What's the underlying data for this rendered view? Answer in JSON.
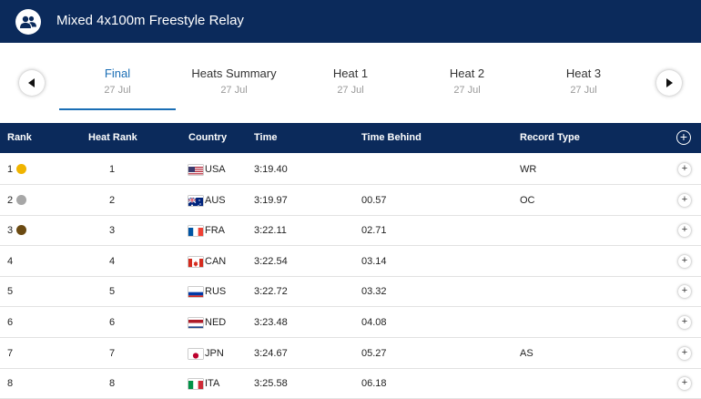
{
  "header": {
    "title": "Mixed 4x100m Freestyle Relay",
    "icon": "team-icon"
  },
  "tabs": [
    {
      "label": "Final",
      "date": "27 Jul",
      "active": true
    },
    {
      "label": "Heats Summary",
      "date": "27 Jul"
    },
    {
      "label": "Heat 1",
      "date": "27 Jul"
    },
    {
      "label": "Heat 2",
      "date": "27 Jul"
    },
    {
      "label": "Heat 3",
      "date": "27 Jul"
    }
  ],
  "table": {
    "headers": {
      "rank": "Rank",
      "heat_rank": "Heat Rank",
      "country": "Country",
      "time": "Time",
      "time_behind": "Time Behind",
      "record_type": "Record Type"
    },
    "rows": [
      {
        "rank": "1",
        "medal": "gold",
        "heat_rank": "1",
        "flag": "usa",
        "country": "USA",
        "time": "3:19.40",
        "time_behind": "",
        "record": "WR"
      },
      {
        "rank": "2",
        "medal": "silver",
        "heat_rank": "2",
        "flag": "aus",
        "country": "AUS",
        "time": "3:19.97",
        "time_behind": "00.57",
        "record": "OC"
      },
      {
        "rank": "3",
        "medal": "bronze",
        "heat_rank": "3",
        "flag": "fra",
        "country": "FRA",
        "time": "3:22.11",
        "time_behind": "02.71",
        "record": ""
      },
      {
        "rank": "4",
        "medal": "",
        "heat_rank": "4",
        "flag": "can",
        "country": "CAN",
        "time": "3:22.54",
        "time_behind": "03.14",
        "record": ""
      },
      {
        "rank": "5",
        "medal": "",
        "heat_rank": "5",
        "flag": "rus",
        "country": "RUS",
        "time": "3:22.72",
        "time_behind": "03.32",
        "record": ""
      },
      {
        "rank": "6",
        "medal": "",
        "heat_rank": "6",
        "flag": "ned",
        "country": "NED",
        "time": "3:23.48",
        "time_behind": "04.08",
        "record": ""
      },
      {
        "rank": "7",
        "medal": "",
        "heat_rank": "7",
        "flag": "jpn",
        "country": "JPN",
        "time": "3:24.67",
        "time_behind": "05.27",
        "record": "AS"
      },
      {
        "rank": "8",
        "medal": "",
        "heat_rank": "8",
        "flag": "ita",
        "country": "ITA",
        "time": "3:25.58",
        "time_behind": "06.18",
        "record": ""
      }
    ]
  },
  "colors": {
    "navy": "#0b2a5b",
    "accent": "#1a6eb5",
    "gold": "#f0b400",
    "silver": "#a7a7a7",
    "bronze": "#6b4a12"
  }
}
